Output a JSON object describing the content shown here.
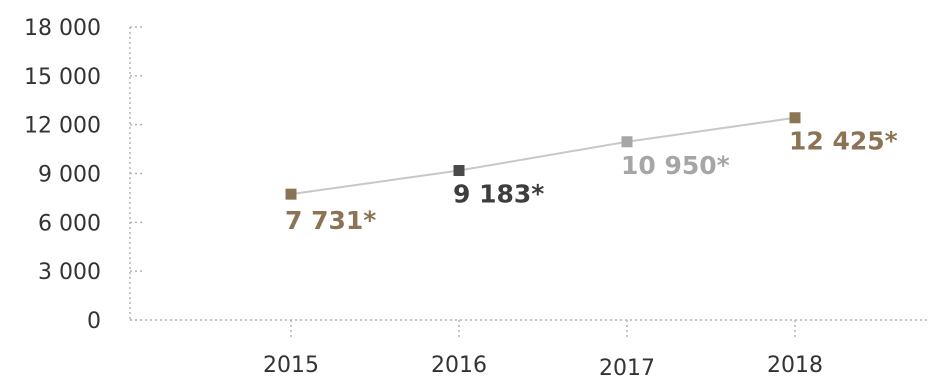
{
  "chart_data": {
    "type": "line",
    "title": "",
    "xlabel": "",
    "ylabel": "",
    "ylim": [
      0,
      18000
    ],
    "yticks": [
      0,
      3000,
      6000,
      9000,
      12000,
      15000,
      18000
    ],
    "ytick_labels": [
      "0",
      "3 000",
      "6 000",
      "9 000",
      "12 000",
      "15 000",
      "18 000"
    ],
    "categories": [
      "2015",
      "2016",
      "2017",
      "2018"
    ],
    "series": [
      {
        "values": [
          7731,
          9183,
          10950,
          12425
        ],
        "data_labels": [
          "7 731*",
          "9 183*",
          "10 950*",
          "12 425*"
        ],
        "marker_colors": [
          "#8b7355",
          "#4a4a4a",
          "#a6a6a6",
          "#8b7355"
        ],
        "label_colors": [
          "#8b7355",
          "#3d3d3d",
          "#a6a6a6",
          "#8b7355"
        ],
        "line_color": "#c8c8c8"
      }
    ],
    "grid": false,
    "legend": "none"
  }
}
